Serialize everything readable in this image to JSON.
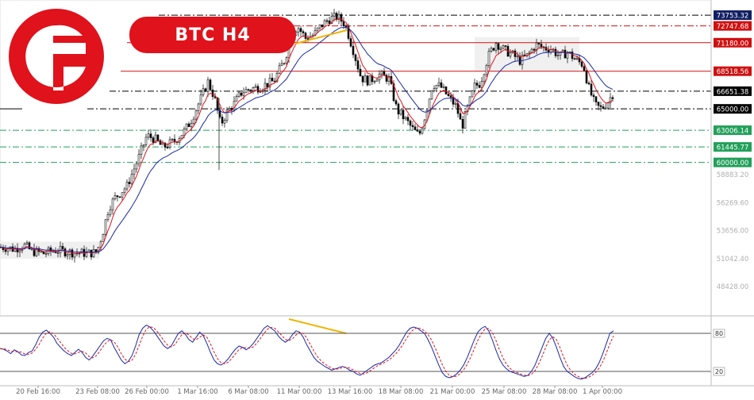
{
  "header": {
    "title": "BTC  H4"
  },
  "brand": {
    "logo_icon": "f-logo-icon",
    "color": "#e0121b"
  },
  "chart_data": {
    "type": "candlestick",
    "title": "BTC  H4",
    "ylim": [
      45815.2,
      74500
    ],
    "y_ticks": [
      "48428.00",
      "51042.40",
      "53656.00",
      "56269.60",
      "58883.20"
    ],
    "x_ticks": [
      "20 Feb 16:00",
      "23 Feb 08:00",
      "26 Feb 00:00",
      "1 Mar 16:00",
      "6 Mar 08:00",
      "11 Mar 00:00",
      "13 Mar 16:00",
      "18 Mar 08:00",
      "21 Mar 00:00",
      "25 Mar 08:00",
      "28 Mar 08:00",
      "1 Apr 00:00"
    ],
    "levels": [
      {
        "label": "73753.32",
        "style": "dashdot",
        "color": "#000000",
        "tag_bg": "#101e62"
      },
      {
        "label": "72747.68",
        "style": "dashdot",
        "color": "#d01010",
        "tag_bg": "#d01010"
      },
      {
        "label": "71180.00",
        "style": "solid",
        "color": "#d01010",
        "tag_bg": "#d01010"
      },
      {
        "label": "68518.56",
        "style": "solid",
        "color": "#d01010",
        "tag_bg": "#d01010"
      },
      {
        "label": "66651.38",
        "style": "dashdot",
        "color": "#000000",
        "tag_bg": "#000000"
      },
      {
        "label": "65000.00",
        "style": "dashdot",
        "color": "#000000",
        "tag_bg": "#000000"
      },
      {
        "label": "63006.14",
        "style": "dashdot",
        "color": "#22a05a",
        "tag_bg": "#22a05a"
      },
      {
        "label": "61445.77",
        "style": "dashdot",
        "color": "#22a05a",
        "tag_bg": "#22a05a"
      },
      {
        "label": "60000.00",
        "style": "dashdot",
        "color": "#22a05a",
        "tag_bg": "#22a05a"
      }
    ],
    "path": [
      [
        0,
        52100
      ],
      [
        8,
        52050
      ],
      [
        18,
        51900
      ],
      [
        30,
        52300
      ],
      [
        40,
        51700
      ],
      [
        55,
        51500
      ],
      [
        70,
        51800
      ],
      [
        90,
        51600
      ],
      [
        110,
        51500
      ],
      [
        122,
        51600
      ],
      [
        130,
        53600
      ],
      [
        137,
        55800
      ],
      [
        145,
        56700
      ],
      [
        160,
        57800
      ],
      [
        175,
        60500
      ],
      [
        185,
        62500
      ],
      [
        195,
        62200
      ],
      [
        205,
        61400
      ],
      [
        220,
        62000
      ],
      [
        232,
        62900
      ],
      [
        240,
        63800
      ],
      [
        252,
        65800
      ],
      [
        262,
        67500
      ],
      [
        270,
        66100
      ],
      [
        278,
        63500
      ],
      [
        285,
        64600
      ],
      [
        295,
        65500
      ],
      [
        305,
        66600
      ],
      [
        318,
        66900
      ],
      [
        330,
        67100
      ],
      [
        345,
        67600
      ],
      [
        360,
        69800
      ],
      [
        365,
        71700
      ],
      [
        375,
        72700
      ],
      [
        385,
        71600
      ],
      [
        395,
        71900
      ],
      [
        405,
        72800
      ],
      [
        415,
        73400
      ],
      [
        425,
        73600
      ],
      [
        435,
        72900
      ],
      [
        445,
        70500
      ],
      [
        455,
        67900
      ],
      [
        465,
        67600
      ],
      [
        478,
        68200
      ],
      [
        490,
        67800
      ],
      [
        500,
        64900
      ],
      [
        512,
        63900
      ],
      [
        520,
        63100
      ],
      [
        528,
        62500
      ],
      [
        535,
        64200
      ],
      [
        545,
        67300
      ],
      [
        555,
        67100
      ],
      [
        565,
        66100
      ],
      [
        575,
        65200
      ],
      [
        582,
        63300
      ],
      [
        590,
        65300
      ],
      [
        598,
        67100
      ],
      [
        605,
        67400
      ],
      [
        615,
        69900
      ],
      [
        625,
        71200
      ],
      [
        635,
        70500
      ],
      [
        645,
        70100
      ],
      [
        655,
        69500
      ],
      [
        665,
        70000
      ],
      [
        675,
        71000
      ],
      [
        685,
        70700
      ],
      [
        695,
        70600
      ],
      [
        705,
        69900
      ],
      [
        715,
        70300
      ],
      [
        725,
        69600
      ],
      [
        735,
        69100
      ],
      [
        742,
        66900
      ],
      [
        750,
        65300
      ],
      [
        758,
        65000
      ],
      [
        766,
        65700
      ],
      [
        773,
        66500
      ]
    ],
    "ma_fast_color": "#e0121b",
    "ma_slow_color": "#1a2aa8",
    "divergence_color": "#f0b400",
    "oscillator": {
      "type": "stochastic",
      "ylim": [
        0,
        100
      ],
      "levels": [
        "80",
        "20"
      ],
      "k_color": "#1a2aa8",
      "d_color": "#e0121b",
      "k": [
        56,
        55,
        52,
        48,
        54,
        51,
        46,
        45,
        50,
        52,
        62,
        74,
        82,
        85,
        80,
        74,
        64,
        58,
        52,
        48,
        45,
        50,
        55,
        50,
        42,
        38,
        44,
        52,
        60,
        68,
        72,
        70,
        58,
        48,
        38,
        32,
        36,
        45,
        60,
        78,
        88,
        93,
        90,
        84,
        76,
        68,
        60,
        56,
        60,
        70,
        80,
        84,
        78,
        70,
        66,
        74,
        82,
        76,
        64,
        50,
        38,
        32,
        30,
        34,
        40,
        48,
        55,
        60,
        58,
        54,
        58,
        64,
        72,
        80,
        88,
        92,
        88,
        84,
        76,
        70,
        66,
        70,
        78,
        84,
        82,
        74,
        62,
        52,
        42,
        36,
        32,
        28,
        25,
        22,
        24,
        26,
        28,
        26,
        22,
        20,
        16,
        14,
        18,
        22,
        26,
        30,
        32,
        34,
        38,
        42,
        48,
        54,
        62,
        72,
        82,
        88,
        90,
        88,
        84,
        80,
        70,
        58,
        44,
        30,
        18,
        12,
        10,
        12,
        16,
        22,
        30,
        42,
        56,
        70,
        82,
        88,
        91,
        84,
        70,
        54,
        40,
        30,
        24,
        20,
        18,
        16,
        14,
        12,
        14,
        20,
        30,
        44,
        58,
        72,
        80,
        72,
        58,
        42,
        28,
        20,
        16,
        12,
        9,
        8,
        10,
        14,
        18,
        24,
        34,
        48,
        64,
        80,
        84
      ]
    }
  }
}
